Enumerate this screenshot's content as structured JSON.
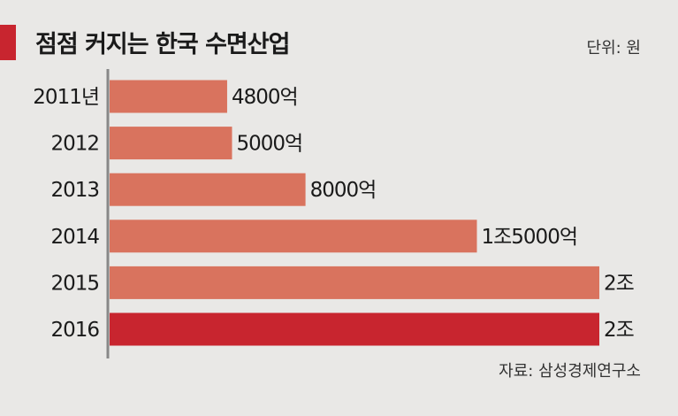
{
  "header": {
    "title": "점점 커지는 한국 수면산업",
    "unit": "단위: 원"
  },
  "footer": {
    "source": "자료: 삼성경제연구소"
  },
  "colors": {
    "accent": "#c8252f",
    "bar": "#d9735e",
    "bar_highlight": "#c8252f",
    "axis": "#888888",
    "background": "#e9e8e6"
  },
  "chart_data": {
    "type": "bar",
    "orientation": "horizontal",
    "title": "점점 커지는 한국 수면산업",
    "categories": [
      "2011년",
      "2012",
      "2013",
      "2014",
      "2015",
      "2016"
    ],
    "values": [
      4800,
      5000,
      8000,
      15000,
      20000,
      20000
    ],
    "value_labels": [
      "4800억",
      "5000억",
      "8000억",
      "1조5000억",
      "2조",
      "2조"
    ],
    "highlight_index": 5,
    "xlim": [
      0,
      20000
    ],
    "unit": "억 원",
    "grid": false,
    "legend": "none"
  }
}
